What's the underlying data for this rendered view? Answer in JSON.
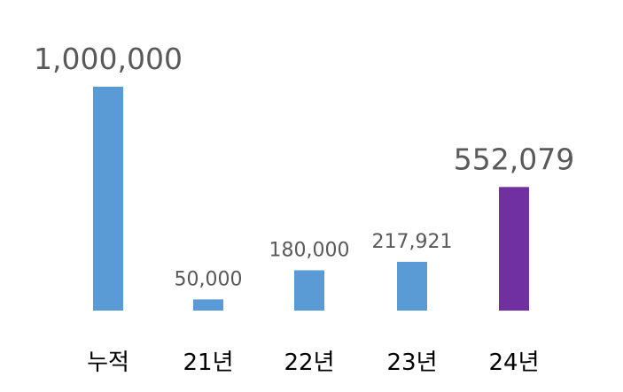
{
  "chart_data": {
    "type": "bar",
    "categories": [
      "누적",
      "21년",
      "22년",
      "23년",
      "24년"
    ],
    "values": [
      1000000,
      50000,
      180000,
      217921,
      552079
    ],
    "data_labels": [
      "1,000,000",
      "50,000",
      "180,000",
      "217,921",
      "552,079"
    ],
    "emphasized": [
      true,
      false,
      false,
      false,
      true
    ],
    "colors": [
      "#5B9BD5",
      "#5B9BD5",
      "#5B9BD5",
      "#5B9BD5",
      "#7030A0"
    ],
    "ylim": [
      0,
      1000000
    ],
    "grid": false,
    "legend": "none",
    "title": "",
    "xlabel": "",
    "ylabel": ""
  }
}
